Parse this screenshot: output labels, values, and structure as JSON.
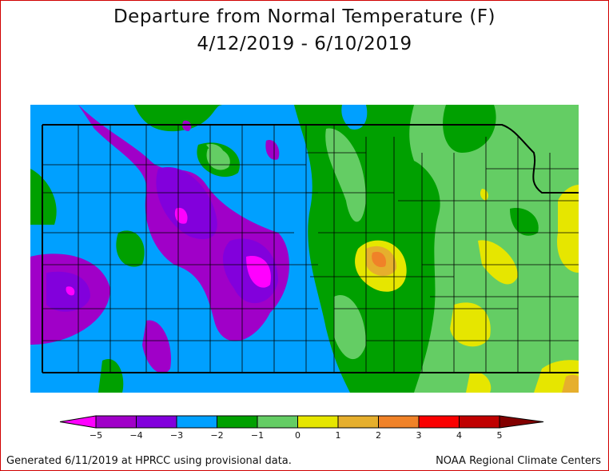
{
  "title": "Departure from Normal Temperature (F)",
  "date_range": "4/12/2019 - 6/10/2019",
  "legend": {
    "bins": [
      {
        "range": "< -5",
        "color": "#ff00ff"
      },
      {
        "range": "-5 to -4",
        "color": "#a000c8"
      },
      {
        "range": "-4 to -3",
        "color": "#8200dc"
      },
      {
        "range": "-3 to -2",
        "color": "#00a0ff"
      },
      {
        "range": "-2 to -1",
        "color": "#00a000"
      },
      {
        "range": "-1 to 0",
        "color": "#64cd64"
      },
      {
        "range": "0 to 1",
        "color": "#e6e600"
      },
      {
        "range": "1 to 2",
        "color": "#e6af2d"
      },
      {
        "range": "2 to 3",
        "color": "#f08228"
      },
      {
        "range": "3 to 4",
        "color": "#fa0000"
      },
      {
        "range": "4 to 5",
        "color": "#c00000"
      },
      {
        "range": "> 5",
        "color": "#820000"
      }
    ],
    "ticks": [
      "−5",
      "−4",
      "−3",
      "−2",
      "−1",
      "0",
      "1",
      "2",
      "3",
      "4",
      "5"
    ]
  },
  "footer": {
    "left": "Generated 6/11/2019 at HPRCC using provisional data.",
    "right": "NOAA Regional Climate Centers"
  }
}
